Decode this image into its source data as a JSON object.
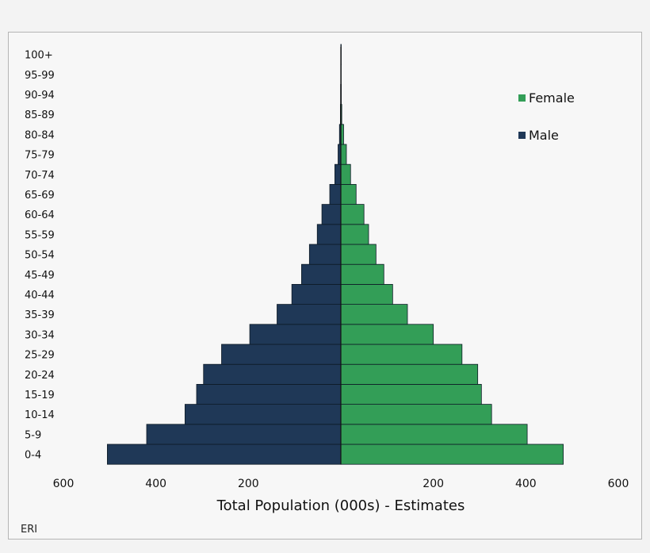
{
  "chart_data": {
    "type": "bar",
    "orientation": "horizontal",
    "layout": "population-pyramid",
    "categories": [
      "0-4",
      "5-9",
      "10-14",
      "15-19",
      "20-24",
      "25-29",
      "30-34",
      "35-39",
      "40-44",
      "45-49",
      "50-54",
      "55-59",
      "60-64",
      "65-69",
      "70-74",
      "75-79",
      "80-84",
      "85-89",
      "90-94",
      "95-99",
      "100+"
    ],
    "series": [
      {
        "name": "Male",
        "color": "#1f3857",
        "side": "left",
        "values": [
          505,
          420,
          337,
          312,
          297,
          258,
          197,
          138,
          106,
          85,
          68,
          51,
          41,
          24,
          13,
          6,
          3,
          1,
          0.5,
          0.2,
          0.1
        ]
      },
      {
        "name": "Female",
        "color": "#339e57",
        "side": "right",
        "values": [
          481,
          403,
          326,
          304,
          296,
          262,
          200,
          144,
          112,
          93,
          76,
          60,
          50,
          33,
          21,
          12,
          6,
          2,
          1,
          0.3,
          0.1
        ]
      }
    ],
    "xlim": [
      -600,
      600
    ],
    "xticks": [
      -600,
      -400,
      -200,
      200,
      400,
      600
    ],
    "xtick_labels": [
      "600",
      "400",
      "200",
      "200",
      "400",
      "600"
    ],
    "title": "",
    "xlabel": "Total Population (000s) - Estimates",
    "ylabel": "",
    "legend": {
      "placement": "top-right",
      "entries": [
        "Female",
        "Male"
      ]
    },
    "grid": false
  },
  "source_code": "ERI"
}
